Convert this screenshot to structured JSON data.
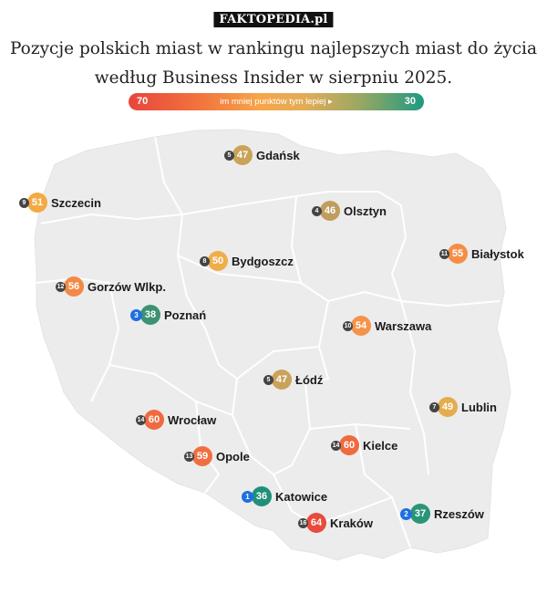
{
  "header": {
    "brand": "FAKTOPEDIA.pl",
    "title_line1": "Pozycje polskich miast w rankingu najlepszych miast do życia",
    "title_line2": "według Business Insider w sierpniu 2025."
  },
  "scale": {
    "min_label": "70",
    "max_label": "30",
    "caption": "im mniej punktów tym lepiej ▸",
    "colors": [
      "#e8453c",
      "#f2763d",
      "#f6a64a",
      "#e2ac58",
      "#9aa862",
      "#1f9a82"
    ]
  },
  "map": {
    "fill_color": "#ececec",
    "border_color": "#ffffff"
  },
  "cities": [
    {
      "rank": "5",
      "score": "47",
      "name": "Gdańsk",
      "color": "#c9a35a"
    },
    {
      "rank": "9",
      "score": "51",
      "name": "Szczecin",
      "color": "#f3aa44"
    },
    {
      "rank": "4",
      "score": "46",
      "name": "Olsztyn",
      "color": "#bf9d5d"
    },
    {
      "rank": "11",
      "score": "55",
      "name": "Białystok",
      "color": "#f48e47"
    },
    {
      "rank": "8",
      "score": "50",
      "name": "Bydgoszcz",
      "color": "#efae4a"
    },
    {
      "rank": "12",
      "score": "56",
      "name": "Gorzów Wlkp.",
      "color": "#f38946"
    },
    {
      "rank": "3",
      "score": "38",
      "name": "Poznań",
      "color": "#3c9272",
      "top": true
    },
    {
      "rank": "10",
      "score": "54",
      "name": "Warszawa",
      "color": "#f5934a"
    },
    {
      "rank": "5",
      "score": "47",
      "name": "Łódź",
      "color": "#c9a35a"
    },
    {
      "rank": "7",
      "score": "49",
      "name": "Lublin",
      "color": "#e4ac4d"
    },
    {
      "rank": "14",
      "score": "60",
      "name": "Wrocław",
      "color": "#ef6a3f"
    },
    {
      "rank": "14",
      "score": "60",
      "name": "Kielce",
      "color": "#ef6a3f"
    },
    {
      "rank": "13",
      "score": "59",
      "name": "Opole",
      "color": "#f06f42"
    },
    {
      "rank": "1",
      "score": "36",
      "name": "Katowice",
      "color": "#21907a",
      "top": true
    },
    {
      "rank": "2",
      "score": "37",
      "name": "Rzeszów",
      "color": "#2a9478",
      "top": true
    },
    {
      "rank": "16",
      "score": "64",
      "name": "Kraków",
      "color": "#e84a3c"
    }
  ]
}
